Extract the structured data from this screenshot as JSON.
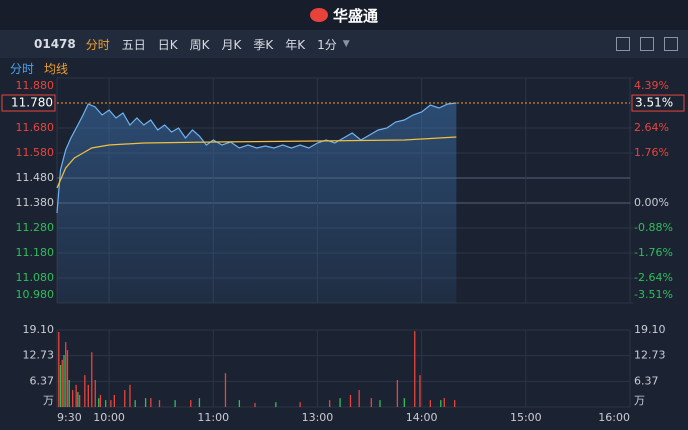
{
  "header": {
    "logo": "华盛通"
  },
  "toolbar": {
    "symbol": "01478",
    "tabs": [
      "分时",
      "五日",
      "日K",
      "周K",
      "月K",
      "季K",
      "年K"
    ],
    "period": "1分"
  },
  "chart_data": [
    {
      "type": "line",
      "grid": true,
      "up_color": "#e8453c",
      "down_color": "#2fbf5c",
      "flat_color": "#c8ccd4",
      "xlim": [
        0,
        330
      ],
      "xticks": [
        {
          "value": 0,
          "label": "9:30"
        },
        {
          "value": 30,
          "label": "10:00"
        },
        {
          "value": 90,
          "label": "11:00"
        },
        {
          "value": 150,
          "label": "13:00"
        },
        {
          "value": 210,
          "label": "14:00"
        },
        {
          "value": 270,
          "label": "15:00"
        },
        {
          "value": 330,
          "label": "16:00"
        }
      ],
      "ylim": [
        10.98,
        11.88
      ],
      "yticks": [
        {
          "value": 11.88,
          "label": "11.880"
        },
        {
          "value": 11.68,
          "label": "11.680"
        },
        {
          "value": 11.58,
          "label": "11.580"
        },
        {
          "value": 11.48,
          "label": "11.480"
        },
        {
          "value": 11.38,
          "label": "11.380"
        },
        {
          "value": 11.28,
          "label": "11.280"
        },
        {
          "value": 11.18,
          "label": "11.180"
        },
        {
          "value": 11.08,
          "label": "11.080"
        },
        {
          "value": 10.98,
          "label": "10.980"
        }
      ],
      "y2lim": [
        -3.51,
        4.39
      ],
      "y2ticks": [
        {
          "value": 4.39,
          "label": "4.39%"
        },
        {
          "value": 2.64,
          "label": "2.64%"
        },
        {
          "value": 1.76,
          "label": "1.76%"
        },
        {
          "value": 0,
          "label": "0.00%"
        },
        {
          "value": -0.88,
          "label": "-0.88%"
        },
        {
          "value": -1.76,
          "label": "-1.76%"
        },
        {
          "value": -2.64,
          "label": "-2.64%"
        },
        {
          "value": -3.51,
          "label": "-3.51%"
        }
      ],
      "last_price": {
        "value": 11.78,
        "label": "11.780"
      },
      "last_change": {
        "value": 3.51,
        "label": "3.51%"
      },
      "series": [
        {
          "name": "分时",
          "color": "#6fb3f2",
          "x": [
            0,
            2,
            5,
            8,
            12,
            15,
            18,
            22,
            26,
            30,
            34,
            38,
            42,
            46,
            50,
            54,
            58,
            62,
            66,
            70,
            74,
            78,
            82,
            86,
            90,
            95,
            100,
            105,
            110,
            115,
            120,
            125,
            130,
            135,
            140,
            145,
            150,
            155,
            160,
            165,
            170,
            175,
            180,
            185,
            190,
            195,
            200,
            205,
            210,
            215,
            220,
            225,
            230
          ],
          "values": [
            11.34,
            11.512,
            11.592,
            11.64,
            11.692,
            11.732,
            11.776,
            11.764,
            11.732,
            11.752,
            11.72,
            11.74,
            11.692,
            11.72,
            11.692,
            11.712,
            11.672,
            11.692,
            11.664,
            11.68,
            11.64,
            11.672,
            11.648,
            11.612,
            11.632,
            11.612,
            11.624,
            11.6,
            11.612,
            11.6,
            11.608,
            11.6,
            11.612,
            11.6,
            11.612,
            11.6,
            11.62,
            11.632,
            11.62,
            11.64,
            11.66,
            11.632,
            11.652,
            11.672,
            11.68,
            11.704,
            11.712,
            11.732,
            11.744,
            11.772,
            11.76,
            11.776,
            11.78
          ]
        },
        {
          "name": "均线",
          "color": "#f0c040",
          "x": [
            0,
            5,
            10,
            15,
            20,
            30,
            50,
            90,
            150,
            200,
            230
          ],
          "values": [
            11.44,
            11.52,
            11.56,
            11.58,
            11.6,
            11.612,
            11.62,
            11.624,
            11.628,
            11.632,
            11.644
          ]
        }
      ]
    },
    {
      "type": "bar",
      "unit": "万",
      "ylim": [
        0,
        19.1
      ],
      "yticks": [
        {
          "value": 19.1,
          "label": "19.10"
        },
        {
          "value": 12.73,
          "label": "12.73"
        },
        {
          "value": 6.37,
          "label": "6.37"
        }
      ],
      "series": [
        {
          "color": "#e8453c",
          "x": [
            1,
            3,
            5,
            6,
            9,
            11,
            13,
            16,
            18,
            20,
            22,
            25,
            31,
            33,
            39,
            42,
            54,
            59,
            77,
            97,
            114,
            140,
            157,
            169,
            174,
            181,
            196,
            206,
            209,
            215,
            223,
            229
          ],
          "values": [
            18.6,
            11.7,
            16.1,
            14.1,
            4.2,
            5.5,
            3.0,
            7.9,
            5.5,
            13.6,
            6.7,
            3.0,
            1.7,
            3.0,
            4.2,
            5.5,
            2.2,
            1.7,
            1.7,
            8.4,
            1.0,
            1.2,
            1.7,
            3.0,
            4.2,
            2.2,
            6.7,
            18.8,
            7.9,
            1.7,
            2.2,
            1.7
          ]
        },
        {
          "color": "#2fbf5c",
          "x": [
            2,
            4,
            7,
            12,
            24,
            28,
            45,
            51,
            68,
            82,
            105,
            126,
            163,
            186,
            200,
            221
          ],
          "values": [
            10.4,
            12.9,
            6.7,
            3.7,
            2.2,
            1.7,
            1.7,
            2.2,
            1.7,
            2.2,
            1.7,
            1.2,
            2.2,
            1.7,
            2.2,
            1.7
          ]
        }
      ]
    }
  ]
}
